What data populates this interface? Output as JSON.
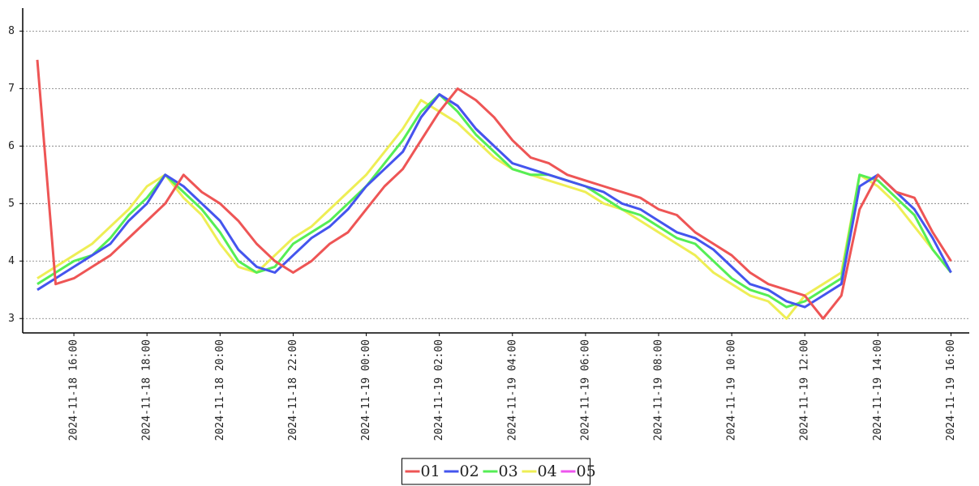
{
  "chart_data": {
    "type": "line",
    "x": [
      "2024-11-18 15:00",
      "2024-11-18 15:30",
      "2024-11-18 16:00",
      "2024-11-18 16:30",
      "2024-11-18 17:00",
      "2024-11-18 17:30",
      "2024-11-18 18:00",
      "2024-11-18 18:30",
      "2024-11-18 19:00",
      "2024-11-18 19:30",
      "2024-11-18 20:00",
      "2024-11-18 20:30",
      "2024-11-18 21:00",
      "2024-11-18 21:30",
      "2024-11-18 22:00",
      "2024-11-18 22:30",
      "2024-11-18 23:00",
      "2024-11-18 23:30",
      "2024-11-19 00:00",
      "2024-11-19 00:30",
      "2024-11-19 01:00",
      "2024-11-19 01:30",
      "2024-11-19 02:00",
      "2024-11-19 02:30",
      "2024-11-19 03:00",
      "2024-11-19 03:30",
      "2024-11-19 04:00",
      "2024-11-19 04:30",
      "2024-11-19 05:00",
      "2024-11-19 05:30",
      "2024-11-19 06:00",
      "2024-11-19 06:30",
      "2024-11-19 07:00",
      "2024-11-19 07:30",
      "2024-11-19 08:00",
      "2024-11-19 08:30",
      "2024-11-19 09:00",
      "2024-11-19 09:30",
      "2024-11-19 10:00",
      "2024-11-19 10:30",
      "2024-11-19 11:00",
      "2024-11-19 11:30",
      "2024-11-19 12:00",
      "2024-11-19 12:30",
      "2024-11-19 13:00",
      "2024-11-19 13:30",
      "2024-11-19 14:00",
      "2024-11-19 14:30",
      "2024-11-19 15:00",
      "2024-11-19 15:30",
      "2024-11-19 16:00"
    ],
    "series": [
      {
        "name": "01",
        "color": "#ee5555",
        "values": [
          7.5,
          3.6,
          3.7,
          3.9,
          4.1,
          4.4,
          4.7,
          5.0,
          5.5,
          5.2,
          5.0,
          4.7,
          4.3,
          4.0,
          3.8,
          4.0,
          4.3,
          4.5,
          4.9,
          5.3,
          5.6,
          6.1,
          6.6,
          7.0,
          6.8,
          6.5,
          6.1,
          5.8,
          5.7,
          5.5,
          5.4,
          5.3,
          5.2,
          5.1,
          4.9,
          4.8,
          4.5,
          4.3,
          4.1,
          3.8,
          3.6,
          3.5,
          3.4,
          3.0,
          3.4,
          4.9,
          5.5,
          5.2,
          5.1,
          4.5,
          4.0
        ]
      },
      {
        "name": "02",
        "color": "#4455ee",
        "values": [
          3.5,
          3.7,
          3.9,
          4.1,
          4.3,
          4.7,
          5.0,
          5.5,
          5.3,
          5.0,
          4.7,
          4.2,
          3.9,
          3.8,
          4.1,
          4.4,
          4.6,
          4.9,
          5.3,
          5.6,
          5.9,
          6.5,
          6.9,
          6.7,
          6.3,
          6.0,
          5.7,
          5.6,
          5.5,
          5.4,
          5.3,
          5.2,
          5.0,
          4.9,
          4.7,
          4.5,
          4.4,
          4.2,
          3.9,
          3.6,
          3.5,
          3.3,
          3.2,
          3.4,
          3.6,
          5.3,
          5.5,
          5.2,
          4.9,
          4.4,
          3.8
        ]
      },
      {
        "name": "03",
        "color": "#55ee55",
        "values": [
          3.6,
          3.8,
          4.0,
          4.1,
          4.4,
          4.8,
          5.1,
          5.5,
          5.2,
          4.9,
          4.5,
          4.0,
          3.8,
          3.9,
          4.3,
          4.5,
          4.7,
          5.0,
          5.3,
          5.7,
          6.1,
          6.6,
          6.9,
          6.6,
          6.2,
          5.9,
          5.6,
          5.5,
          5.5,
          5.4,
          5.3,
          5.1,
          4.9,
          4.8,
          4.6,
          4.4,
          4.3,
          4.0,
          3.7,
          3.5,
          3.4,
          3.2,
          3.3,
          3.5,
          3.7,
          5.5,
          5.4,
          5.1,
          4.8,
          4.2,
          3.8
        ]
      },
      {
        "name": "04",
        "color": "#eeee55",
        "values": [
          3.7,
          3.9,
          4.1,
          4.3,
          4.6,
          4.9,
          5.3,
          5.5,
          5.1,
          4.8,
          4.3,
          3.9,
          3.8,
          4.1,
          4.4,
          4.6,
          4.9,
          5.2,
          5.5,
          5.9,
          6.3,
          6.8,
          6.6,
          6.4,
          6.1,
          5.8,
          5.6,
          5.5,
          5.4,
          5.3,
          5.2,
          5.0,
          4.9,
          4.7,
          4.5,
          4.3,
          4.1,
          3.8,
          3.6,
          3.4,
          3.3,
          3.0,
          3.4,
          3.6,
          3.8,
          5.5,
          5.3,
          5.0,
          4.6,
          4.2,
          3.8
        ]
      },
      {
        "name": "05",
        "color": "#ee55ee",
        "values": [
          null,
          null,
          null,
          null,
          null,
          null,
          null,
          null,
          null,
          null,
          null,
          null,
          null,
          null,
          null,
          null,
          null,
          null,
          null,
          null,
          5.9,
          6.5,
          6.9,
          6.7,
          6.3,
          6.0,
          null,
          null,
          null,
          null,
          null,
          null,
          null,
          null,
          null,
          null,
          null,
          null,
          null,
          null,
          null,
          null,
          null,
          null,
          null,
          null,
          null,
          null,
          null,
          null,
          null
        ]
      }
    ],
    "xlim": [
      "2024-11-18 14:36",
      "2024-11-19 16:30"
    ],
    "xticks": [
      "2024-11-18 16:00",
      "2024-11-18 18:00",
      "2024-11-18 20:00",
      "2024-11-18 22:00",
      "2024-11-19 00:00",
      "2024-11-19 02:00",
      "2024-11-19 04:00",
      "2024-11-19 06:00",
      "2024-11-19 08:00",
      "2024-11-19 10:00",
      "2024-11-19 12:00",
      "2024-11-19 14:00",
      "2024-11-19 16:00"
    ],
    "ylim": [
      2.75,
      8.4
    ],
    "yticks": [
      3,
      4,
      5,
      6,
      7,
      8
    ],
    "grid": true,
    "legend": "bottom"
  }
}
